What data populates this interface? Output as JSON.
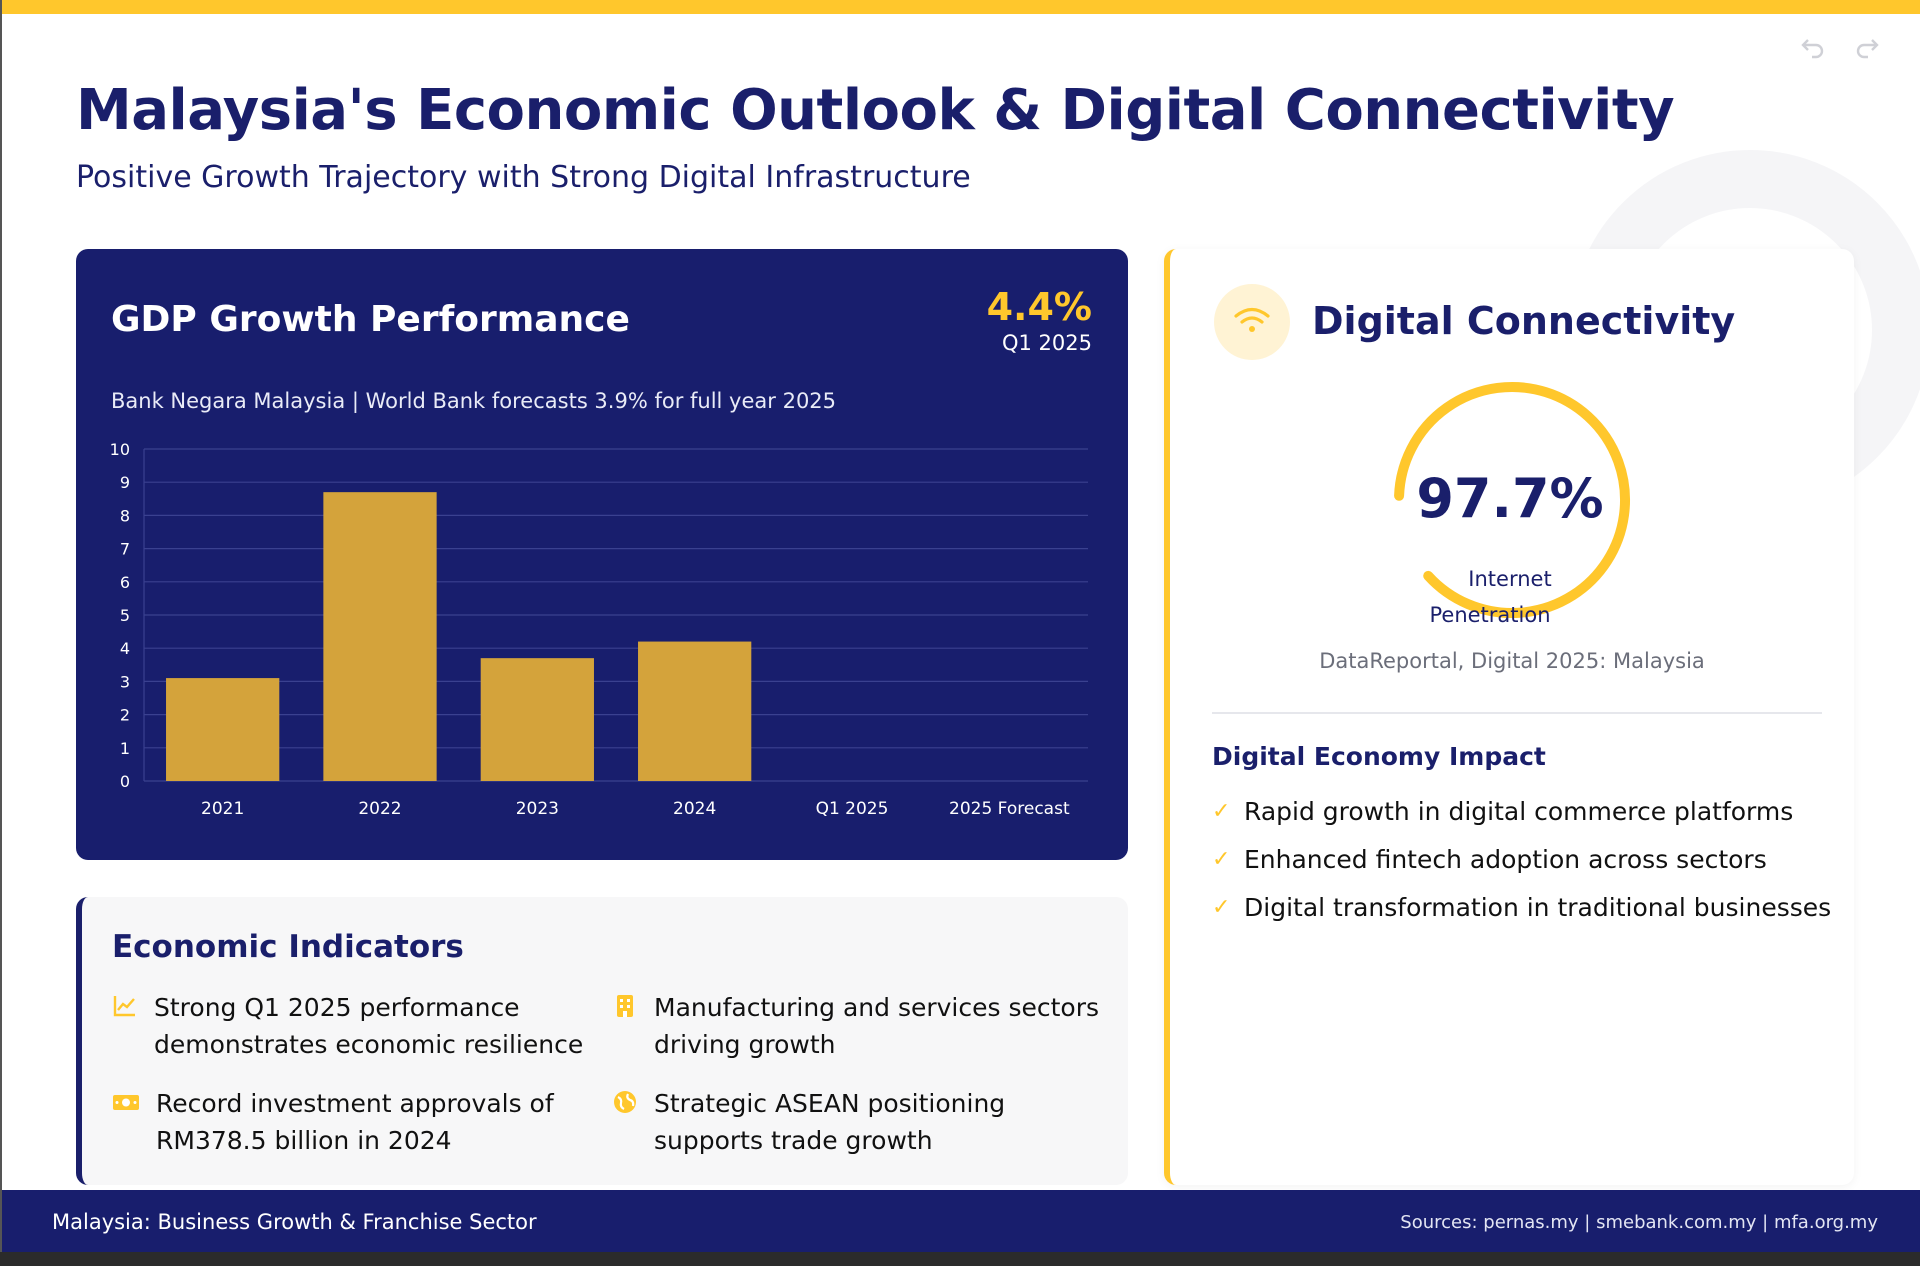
{
  "page": {
    "title": "Malaysia's Economic Outlook & Digital Connectivity",
    "subtitle": "Positive Growth Trajectory with Strong Digital Infrastructure"
  },
  "gdp_card": {
    "title": "GDP Growth Performance",
    "stat_value": "4.4%",
    "stat_label": "Q1 2025",
    "source": "Bank Negara Malaysia | World Bank forecasts 3.9% for full year 2025"
  },
  "chart_data": {
    "type": "bar",
    "categories": [
      "2021",
      "2022",
      "2023",
      "2024",
      "Q1 2025",
      "2025 Forecast"
    ],
    "values": [
      3.1,
      8.7,
      3.7,
      4.2,
      null,
      null
    ],
    "title": "GDP Growth Performance",
    "xlabel": "",
    "ylabel": "",
    "ylim": [
      0,
      10
    ],
    "yticks": [
      0,
      1,
      2,
      3,
      4,
      5,
      6,
      7,
      8,
      9,
      10
    ],
    "grid": true,
    "bar_color": "#d4a33b",
    "grid_color": "#3a4190"
  },
  "indicators": {
    "title": "Economic Indicators",
    "items": [
      {
        "icon": "chart-line-icon",
        "text_line1": "Strong Q1 2025 performance",
        "text_line2": "demonstrates economic resilience"
      },
      {
        "icon": "building-icon",
        "text_line1": "Manufacturing and services sectors",
        "text_line2": "driving growth"
      },
      {
        "icon": "money-icon",
        "text_line1": "Record investment approvals of",
        "text_line2": "RM378.5 billion in 2024"
      },
      {
        "icon": "globe-icon",
        "text_line1": "Strategic ASEAN positioning",
        "text_line2": "supports trade growth"
      }
    ]
  },
  "digital": {
    "title": "Digital Connectivity",
    "icon": "wifi-icon",
    "gauge_value": "97.7%",
    "gauge_fraction": 0.977,
    "gauge_label1": "Internet",
    "gauge_label2": "Penetration",
    "source": "DataReportal, Digital 2025: Malaysia",
    "impact_title": "Digital Economy Impact",
    "impact_items": [
      "Rapid growth in digital commerce platforms",
      "Enhanced fintech adoption across sectors",
      "Digital transformation in traditional businesses"
    ]
  },
  "footer": {
    "left": "Malaysia: Business Growth & Franchise Sector",
    "right": "Sources: pernas.my | smebank.com.my | mfa.org.my"
  },
  "colors": {
    "navy": "#181e6d",
    "accent": "#ffc72c",
    "bar": "#d4a33b"
  }
}
